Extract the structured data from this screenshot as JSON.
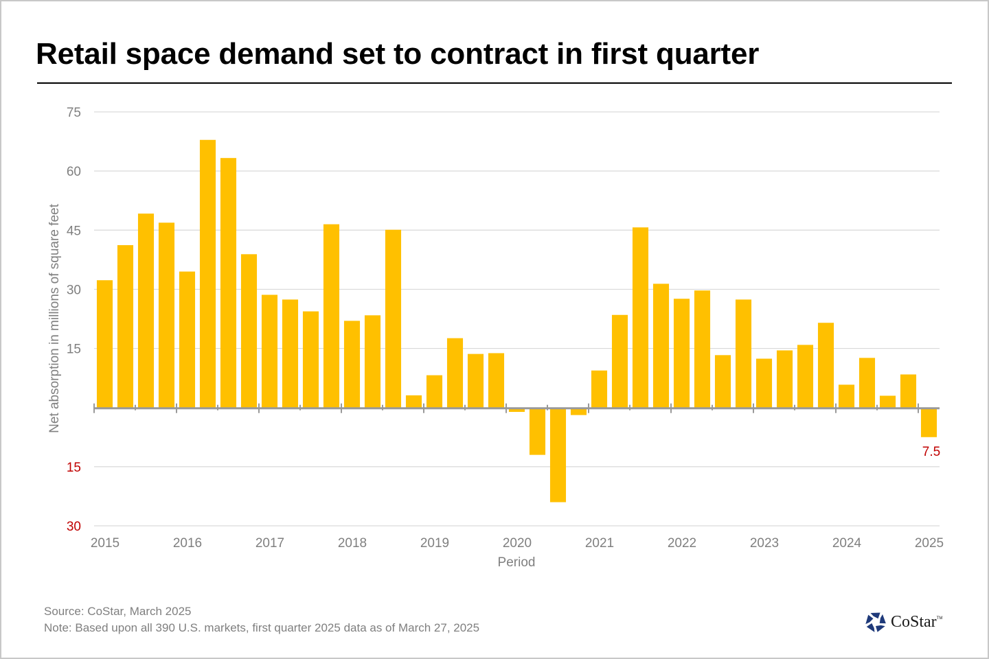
{
  "header": {
    "title": "Retail space demand set to contract in first quarter"
  },
  "footer": {
    "source": "Source: CoStar, March 2025",
    "note": "Note: Based upon all 390 U.S. markets, first quarter 2025 data as of March 27, 2025",
    "logo_text": "CoStar",
    "logo_tm": "TM"
  },
  "colors": {
    "bar": "#FFC000",
    "axis": "#999999",
    "grid": "#d9d9d9",
    "tick_text": "#7f7f7f",
    "negative_text": "#c00000",
    "logo": "#1f3a7a"
  },
  "chart_data": {
    "type": "bar",
    "title": "Retail space demand set to contract in first quarter",
    "xlabel": "Period",
    "ylabel": "Net absorption in millions of square feet",
    "ylim": [
      -30,
      75
    ],
    "yticks": [
      75,
      60,
      45,
      30,
      15,
      0,
      -15,
      -30
    ],
    "ytick_labels": [
      {
        "value": 75,
        "label": "75",
        "negative": false
      },
      {
        "value": 60,
        "label": "60",
        "negative": false
      },
      {
        "value": 45,
        "label": "45",
        "negative": false
      },
      {
        "value": 30,
        "label": "30",
        "negative": false
      },
      {
        "value": 15,
        "label": "15",
        "negative": false
      },
      {
        "value": -15,
        "label": "15",
        "negative": true
      },
      {
        "value": -30,
        "label": "30",
        "negative": true
      }
    ],
    "grid": true,
    "legend": "none",
    "xtick_labels": [
      "2015",
      "2016",
      "2017",
      "2018",
      "2019",
      "2020",
      "2021",
      "2022",
      "2023",
      "2024",
      "2025"
    ],
    "categories": [
      "2015 Q1",
      "2015 Q2",
      "2015 Q3",
      "2015 Q4",
      "2016 Q1",
      "2016 Q2",
      "2016 Q3",
      "2016 Q4",
      "2017 Q1",
      "2017 Q2",
      "2017 Q3",
      "2017 Q4",
      "2018 Q1",
      "2018 Q2",
      "2018 Q3",
      "2018 Q4",
      "2019 Q1",
      "2019 Q2",
      "2019 Q3",
      "2019 Q4",
      "2020 Q1",
      "2020 Q2",
      "2020 Q3",
      "2020 Q4",
      "2021 Q1",
      "2021 Q2",
      "2021 Q3",
      "2021 Q4",
      "2022 Q1",
      "2022 Q2",
      "2022 Q3",
      "2022 Q4",
      "2023 Q1",
      "2023 Q2",
      "2023 Q3",
      "2023 Q4",
      "2024 Q1",
      "2024 Q2",
      "2024 Q3",
      "2024 Q4",
      "2025 Q1"
    ],
    "values": [
      32.3,
      41.2,
      49.2,
      46.9,
      34.5,
      67.9,
      63.3,
      38.9,
      28.6,
      27.4,
      24.4,
      46.5,
      22.0,
      23.4,
      45.1,
      3.1,
      8.2,
      17.6,
      13.6,
      13.8,
      -1.1,
      -12.0,
      -24.0,
      -1.9,
      9.4,
      23.5,
      45.7,
      31.4,
      27.6,
      29.7,
      13.3,
      27.4,
      12.4,
      14.5,
      15.9,
      21.5,
      5.8,
      12.6,
      3.0,
      8.4,
      -7.5
    ],
    "annotations": [
      {
        "category": "2025 Q1",
        "text": "7.5",
        "color": "#c00000"
      }
    ]
  }
}
